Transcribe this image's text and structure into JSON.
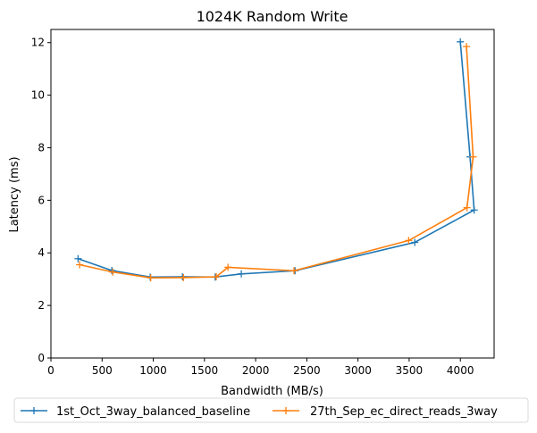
{
  "chart_data": {
    "type": "line",
    "title": "1024K  Random Write",
    "xlabel": "Bandwidth (MB/s)",
    "ylabel": "Latency (ms)",
    "xlim": [
      0,
      4330
    ],
    "ylim": [
      0,
      12.5
    ],
    "xticks": [
      "0",
      "500",
      "1000",
      "1500",
      "2000",
      "2500",
      "3000",
      "3500",
      "4000"
    ],
    "yticks": [
      "0",
      "2",
      "4",
      "6",
      "8",
      "10",
      "12"
    ],
    "grid": false,
    "legend_position": "bottom-center",
    "series": [
      {
        "name": "1st_Oct_3way_balanced_baseline",
        "color": "#1f77b4",
        "marker": "plus",
        "points": [
          [
            265,
            3.78
          ],
          [
            595,
            3.33
          ],
          [
            970,
            3.08
          ],
          [
            1285,
            3.09
          ],
          [
            1605,
            3.08
          ],
          [
            1860,
            3.2
          ],
          [
            2385,
            3.32
          ],
          [
            3555,
            4.4
          ],
          [
            4135,
            5.63
          ],
          [
            4095,
            7.65
          ],
          [
            4000,
            12.03
          ]
        ]
      },
      {
        "name": "27th_Sep_ec_direct_reads_3way",
        "color": "#ff7f0e",
        "marker": "plus",
        "points": [
          [
            280,
            3.55
          ],
          [
            605,
            3.27
          ],
          [
            975,
            3.05
          ],
          [
            1295,
            3.06
          ],
          [
            1615,
            3.09
          ],
          [
            1730,
            3.45
          ],
          [
            2375,
            3.32
          ],
          [
            3495,
            4.47
          ],
          [
            4065,
            5.72
          ],
          [
            4125,
            7.65
          ],
          [
            4060,
            11.85
          ]
        ]
      }
    ]
  }
}
